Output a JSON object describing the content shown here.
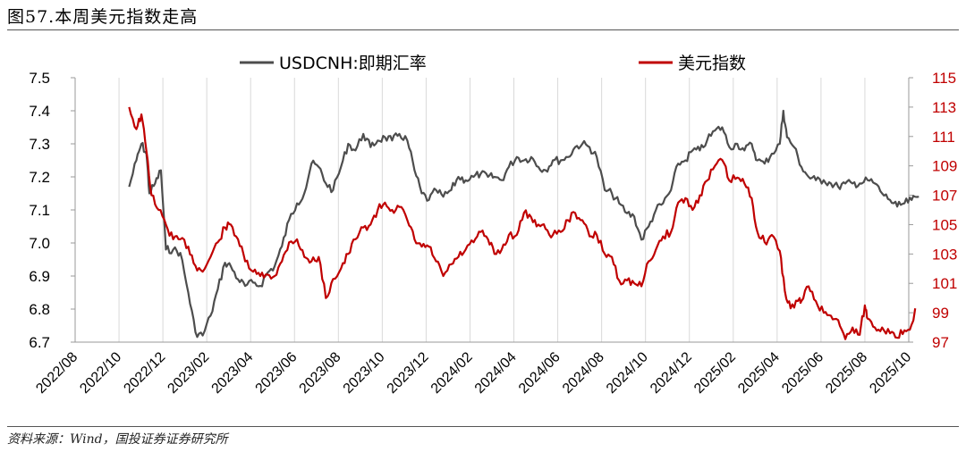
{
  "header": {
    "title": "图57.本周美元指数走高"
  },
  "footer": {
    "source": "资料来源：Wind，国投证券证券研究所"
  },
  "colors": {
    "usdcnh": "#4d4d4d",
    "dxy": "#c00000",
    "grid": "#d9d9d9"
  },
  "chart_data": {
    "type": "line",
    "title": "",
    "x_ticks": [
      "2022/08",
      "2022/10",
      "2022/12",
      "2023/02",
      "2023/04",
      "2023/06",
      "2023/08",
      "2023/10",
      "2023/12",
      "2024/02",
      "2024/04",
      "2024/06",
      "2024/08",
      "2024/10",
      "2024/12",
      "2025/02",
      "2025/04",
      "2025/06",
      "2025/08",
      "2025/10"
    ],
    "y_left": {
      "ylim": [
        6.7,
        7.5
      ],
      "ticks": [
        "7.5",
        "7.4",
        "7.3",
        "7.2",
        "7.1",
        "7.0",
        "6.9",
        "6.8",
        "6.7"
      ]
    },
    "y_right": {
      "ylim": [
        97,
        115
      ],
      "ticks": [
        "115",
        "113",
        "111",
        "109",
        "107",
        "105",
        "103",
        "101",
        "99",
        "97"
      ]
    },
    "legend_position": "top",
    "series": [
      {
        "name": "USDCNH:即期汇率",
        "axis": "left",
        "points": [
          [
            "2022-10-15",
            7.17
          ],
          [
            "2022-10-25",
            7.25
          ],
          [
            "2022-11-01",
            7.3
          ],
          [
            "2022-11-08",
            7.27
          ],
          [
            "2022-11-12",
            7.15
          ],
          [
            "2022-11-20",
            7.18
          ],
          [
            "2022-11-28",
            7.22
          ],
          [
            "2022-12-05",
            6.98
          ],
          [
            "2022-12-15",
            6.98
          ],
          [
            "2022-12-25",
            6.97
          ],
          [
            "2023-01-05",
            6.85
          ],
          [
            "2023-01-15",
            6.73
          ],
          [
            "2023-01-25",
            6.72
          ],
          [
            "2023-02-05",
            6.78
          ],
          [
            "2023-02-15",
            6.86
          ],
          [
            "2023-02-25",
            6.94
          ],
          [
            "2023-03-05",
            6.93
          ],
          [
            "2023-03-15",
            6.89
          ],
          [
            "2023-03-25",
            6.87
          ],
          [
            "2023-04-05",
            6.88
          ],
          [
            "2023-04-15",
            6.87
          ],
          [
            "2023-04-25",
            6.91
          ],
          [
            "2023-05-05",
            6.93
          ],
          [
            "2023-05-15",
            6.99
          ],
          [
            "2023-05-25",
            7.07
          ],
          [
            "2023-06-05",
            7.12
          ],
          [
            "2023-06-15",
            7.15
          ],
          [
            "2023-06-25",
            7.24
          ],
          [
            "2023-07-05",
            7.23
          ],
          [
            "2023-07-15",
            7.18
          ],
          [
            "2023-07-25",
            7.16
          ],
          [
            "2023-08-05",
            7.23
          ],
          [
            "2023-08-15",
            7.3
          ],
          [
            "2023-08-25",
            7.28
          ],
          [
            "2023-09-05",
            7.33
          ],
          [
            "2023-09-15",
            7.29
          ],
          [
            "2023-09-25",
            7.31
          ],
          [
            "2023-10-05",
            7.32
          ],
          [
            "2023-10-15",
            7.31
          ],
          [
            "2023-10-25",
            7.33
          ],
          [
            "2023-11-05",
            7.31
          ],
          [
            "2023-11-15",
            7.22
          ],
          [
            "2023-11-25",
            7.15
          ],
          [
            "2023-12-05",
            7.13
          ],
          [
            "2023-12-15",
            7.16
          ],
          [
            "2023-12-25",
            7.14
          ],
          [
            "2024-01-05",
            7.16
          ],
          [
            "2024-01-15",
            7.2
          ],
          [
            "2024-01-25",
            7.19
          ],
          [
            "2024-02-05",
            7.2
          ],
          [
            "2024-02-15",
            7.21
          ],
          [
            "2024-02-25",
            7.2
          ],
          [
            "2024-03-05",
            7.2
          ],
          [
            "2024-03-15",
            7.19
          ],
          [
            "2024-03-25",
            7.23
          ],
          [
            "2024-04-05",
            7.26
          ],
          [
            "2024-04-15",
            7.25
          ],
          [
            "2024-04-25",
            7.26
          ],
          [
            "2024-05-05",
            7.23
          ],
          [
            "2024-05-15",
            7.22
          ],
          [
            "2024-05-25",
            7.25
          ],
          [
            "2024-06-05",
            7.25
          ],
          [
            "2024-06-15",
            7.26
          ],
          [
            "2024-06-25",
            7.29
          ],
          [
            "2024-07-05",
            7.3
          ],
          [
            "2024-07-15",
            7.29
          ],
          [
            "2024-07-25",
            7.26
          ],
          [
            "2024-08-05",
            7.16
          ],
          [
            "2024-08-15",
            7.15
          ],
          [
            "2024-08-25",
            7.12
          ],
          [
            "2024-09-05",
            7.09
          ],
          [
            "2024-09-15",
            7.08
          ],
          [
            "2024-09-25",
            7.01
          ],
          [
            "2024-10-05",
            7.05
          ],
          [
            "2024-10-15",
            7.1
          ],
          [
            "2024-10-25",
            7.12
          ],
          [
            "2024-11-05",
            7.16
          ],
          [
            "2024-11-15",
            7.24
          ],
          [
            "2024-11-25",
            7.25
          ],
          [
            "2024-12-05",
            7.28
          ],
          [
            "2024-12-15",
            7.28
          ],
          [
            "2024-12-25",
            7.31
          ],
          [
            "2025-01-05",
            7.34
          ],
          [
            "2025-01-15",
            7.35
          ],
          [
            "2025-01-25",
            7.29
          ],
          [
            "2025-02-05",
            7.3
          ],
          [
            "2025-02-15",
            7.28
          ],
          [
            "2025-02-25",
            7.3
          ],
          [
            "2025-03-05",
            7.25
          ],
          [
            "2025-03-15",
            7.24
          ],
          [
            "2025-03-25",
            7.27
          ],
          [
            "2025-04-05",
            7.3
          ],
          [
            "2025-04-10",
            7.4
          ],
          [
            "2025-04-15",
            7.32
          ],
          [
            "2025-04-25",
            7.29
          ],
          [
            "2025-05-05",
            7.23
          ],
          [
            "2025-05-15",
            7.2
          ],
          [
            "2025-05-25",
            7.19
          ],
          [
            "2025-06-05",
            7.19
          ],
          [
            "2025-06-15",
            7.18
          ],
          [
            "2025-06-25",
            7.17
          ],
          [
            "2025-07-05",
            7.18
          ],
          [
            "2025-07-15",
            7.18
          ],
          [
            "2025-07-25",
            7.18
          ],
          [
            "2025-08-05",
            7.19
          ],
          [
            "2025-08-15",
            7.18
          ],
          [
            "2025-08-25",
            7.15
          ],
          [
            "2025-09-05",
            7.13
          ],
          [
            "2025-09-15",
            7.11
          ],
          [
            "2025-09-25",
            7.12
          ],
          [
            "2025-10-05",
            7.13
          ],
          [
            "2025-10-15",
            7.14
          ]
        ]
      },
      {
        "name": "美元指数",
        "axis": "right",
        "points": [
          [
            "2022-10-15",
            113.0
          ],
          [
            "2022-10-25",
            111.5
          ],
          [
            "2022-11-01",
            112.5
          ],
          [
            "2022-11-08",
            110.0
          ],
          [
            "2022-11-15",
            107.0
          ],
          [
            "2022-11-25",
            106.0
          ],
          [
            "2022-12-05",
            105.0
          ],
          [
            "2022-12-15",
            104.0
          ],
          [
            "2022-12-25",
            104.0
          ],
          [
            "2023-01-05",
            103.5
          ],
          [
            "2023-01-15",
            102.2
          ],
          [
            "2023-01-25",
            101.8
          ],
          [
            "2023-02-05",
            102.8
          ],
          [
            "2023-02-15",
            103.8
          ],
          [
            "2023-02-25",
            104.8
          ],
          [
            "2023-03-05",
            105.0
          ],
          [
            "2023-03-15",
            104.0
          ],
          [
            "2023-03-25",
            102.5
          ],
          [
            "2023-04-05",
            101.8
          ],
          [
            "2023-04-15",
            101.5
          ],
          [
            "2023-04-25",
            101.6
          ],
          [
            "2023-05-05",
            101.5
          ],
          [
            "2023-05-15",
            102.5
          ],
          [
            "2023-05-25",
            103.8
          ],
          [
            "2023-06-05",
            104.0
          ],
          [
            "2023-06-15",
            102.8
          ],
          [
            "2023-06-25",
            102.5
          ],
          [
            "2023-07-05",
            102.8
          ],
          [
            "2023-07-15",
            100.0
          ],
          [
            "2023-07-25",
            101.3
          ],
          [
            "2023-08-05",
            102.0
          ],
          [
            "2023-08-15",
            103.0
          ],
          [
            "2023-08-25",
            104.0
          ],
          [
            "2023-09-05",
            104.8
          ],
          [
            "2023-09-15",
            105.0
          ],
          [
            "2023-09-25",
            106.0
          ],
          [
            "2023-10-05",
            106.5
          ],
          [
            "2023-10-15",
            106.0
          ],
          [
            "2023-10-25",
            106.2
          ],
          [
            "2023-11-05",
            105.3
          ],
          [
            "2023-11-15",
            104.0
          ],
          [
            "2023-11-25",
            103.5
          ],
          [
            "2023-12-05",
            103.5
          ],
          [
            "2023-12-15",
            102.5
          ],
          [
            "2023-12-25",
            101.5
          ],
          [
            "2024-01-05",
            102.3
          ],
          [
            "2024-01-15",
            102.8
          ],
          [
            "2024-01-25",
            103.3
          ],
          [
            "2024-02-05",
            103.8
          ],
          [
            "2024-02-15",
            104.5
          ],
          [
            "2024-02-25",
            104.0
          ],
          [
            "2024-03-05",
            103.0
          ],
          [
            "2024-03-15",
            103.3
          ],
          [
            "2024-03-25",
            104.3
          ],
          [
            "2024-04-05",
            104.3
          ],
          [
            "2024-04-15",
            105.8
          ],
          [
            "2024-04-25",
            105.5
          ],
          [
            "2024-05-05",
            105.0
          ],
          [
            "2024-05-15",
            104.7
          ],
          [
            "2024-05-25",
            104.3
          ],
          [
            "2024-06-05",
            104.5
          ],
          [
            "2024-06-15",
            105.3
          ],
          [
            "2024-06-25",
            105.8
          ],
          [
            "2024-07-05",
            105.3
          ],
          [
            "2024-07-15",
            104.2
          ],
          [
            "2024-07-25",
            104.3
          ],
          [
            "2024-08-05",
            103.0
          ],
          [
            "2024-08-15",
            102.8
          ],
          [
            "2024-08-25",
            101.2
          ],
          [
            "2024-09-05",
            101.2
          ],
          [
            "2024-09-15",
            101.0
          ],
          [
            "2024-09-25",
            100.8
          ],
          [
            "2024-10-05",
            102.5
          ],
          [
            "2024-10-15",
            103.3
          ],
          [
            "2024-10-25",
            104.2
          ],
          [
            "2024-11-05",
            104.5
          ],
          [
            "2024-11-15",
            106.5
          ],
          [
            "2024-11-25",
            106.8
          ],
          [
            "2024-12-05",
            106.0
          ],
          [
            "2024-12-15",
            107.0
          ],
          [
            "2024-12-25",
            108.0
          ],
          [
            "2025-01-05",
            109.0
          ],
          [
            "2025-01-15",
            109.4
          ],
          [
            "2025-01-25",
            108.0
          ],
          [
            "2025-02-05",
            108.2
          ],
          [
            "2025-02-15",
            107.8
          ],
          [
            "2025-02-25",
            106.8
          ],
          [
            "2025-03-05",
            104.5
          ],
          [
            "2025-03-15",
            103.8
          ],
          [
            "2025-03-25",
            104.3
          ],
          [
            "2025-04-05",
            103.2
          ],
          [
            "2025-04-12",
            100.5
          ],
          [
            "2025-04-20",
            99.3
          ],
          [
            "2025-04-30",
            99.8
          ],
          [
            "2025-05-05",
            99.8
          ],
          [
            "2025-05-15",
            100.8
          ],
          [
            "2025-05-25",
            99.8
          ],
          [
            "2025-06-05",
            99.0
          ],
          [
            "2025-06-15",
            98.8
          ],
          [
            "2025-06-25",
            98.5
          ],
          [
            "2025-07-05",
            97.2
          ],
          [
            "2025-07-15",
            98.0
          ],
          [
            "2025-07-25",
            97.5
          ],
          [
            "2025-08-01",
            99.5
          ],
          [
            "2025-08-05",
            98.6
          ],
          [
            "2025-08-15",
            98.0
          ],
          [
            "2025-08-25",
            98.0
          ],
          [
            "2025-09-05",
            97.6
          ],
          [
            "2025-09-15",
            97.3
          ],
          [
            "2025-09-25",
            97.8
          ],
          [
            "2025-10-05",
            98.2
          ],
          [
            "2025-10-10",
            99.3
          ]
        ]
      }
    ]
  }
}
